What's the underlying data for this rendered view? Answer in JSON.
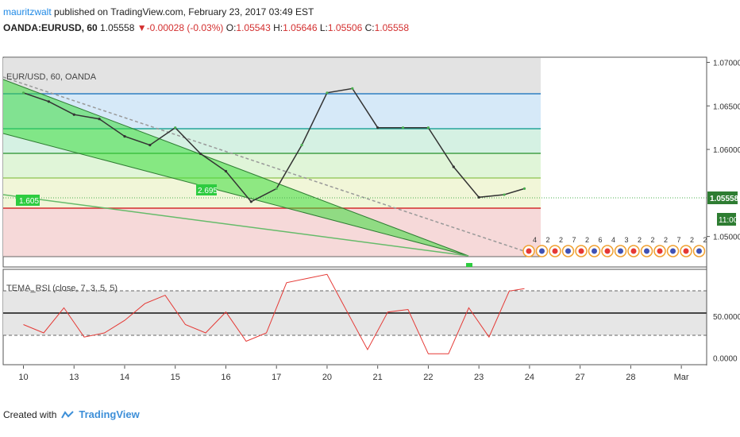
{
  "header": {
    "author": "mauritzwalt",
    "published": "published on TradingView.com, February 23, 2017 03:49 EST",
    "symbol": "OANDA:EURUSD, 60",
    "last": "1.05558",
    "change": "-0.00028 (-0.03%)",
    "o_label": "O:",
    "o": "1.05543",
    "h_label": "H:",
    "h": "1.05646",
    "l_label": "L:",
    "l": "1.05506",
    "c_label": "C:",
    "c": "1.05558"
  },
  "chart_title": "EUR/USD, 60, OANDA",
  "rsi_title": "TEMA_RSI (close, 7, 3, 5, 5)",
  "footer": {
    "created_with": "Created with",
    "brand": "TradingView"
  },
  "colors": {
    "up": "#4caf50",
    "down": "#333333",
    "rsi_line": "#e53935",
    "channel_fill": "#3ddc3d",
    "last_price_tag": "#2e7d32",
    "time_tag": "#2e7d32"
  },
  "chart_data": [
    {
      "type": "line",
      "title": "EUR/USD, 60, OANDA",
      "x_ticks": [
        "10",
        "13",
        "14",
        "15",
        "16",
        "17",
        "20",
        "21",
        "22",
        "23",
        "24",
        "27",
        "28",
        "Mar"
      ],
      "y_ticks": [
        "1.07000",
        "1.06500",
        "1.06000",
        "1.05000"
      ],
      "last_price_label": "1.05558",
      "time_label": "11:00",
      "ylim": [
        1.0465,
        1.0705
      ],
      "x": [
        0,
        0.5,
        1,
        1.5,
        2,
        2.5,
        3,
        3.5,
        4,
        4.5,
        5,
        5.5,
        6,
        6.5,
        7,
        7.5,
        8,
        8.5,
        9,
        9.5,
        9.9
      ],
      "close": [
        1.0665,
        1.0655,
        1.064,
        1.0635,
        1.0615,
        1.0605,
        1.0625,
        1.0595,
        1.0575,
        1.054,
        1.0555,
        1.0605,
        1.0665,
        1.067,
        1.0625,
        1.0625,
        1.0625,
        1.058,
        1.0545,
        1.0548,
        1.0555
      ],
      "fib_levels": [
        1.0664,
        1.0629,
        1.0604,
        1.0576,
        1.0542
      ],
      "channel_label": "1.605",
      "channel_label_2": "2.695",
      "event_flags": [
        "4",
        "2",
        "2",
        "7",
        "2",
        "6",
        "4",
        "3",
        "2",
        "2",
        "2",
        "7",
        "2",
        "2"
      ]
    },
    {
      "type": "line",
      "title": "TEMA_RSI (close, 7, 3, 5, 5)",
      "y_ticks": [
        "50.0000",
        "0.0000"
      ],
      "levels": [
        80,
        50,
        20
      ],
      "ylim": [
        -8,
        105
      ],
      "x": [
        0,
        0.4,
        0.8,
        1.2,
        1.6,
        2.0,
        2.4,
        2.8,
        3.2,
        3.6,
        4.0,
        4.4,
        4.8,
        5.2,
        5.6,
        6.0,
        6.4,
        6.8,
        7.2,
        7.6,
        8.0,
        8.4,
        8.8,
        9.2,
        9.6,
        9.9
      ],
      "values": [
        40,
        30,
        60,
        25,
        30,
        45,
        65,
        75,
        40,
        30,
        55,
        20,
        30,
        90,
        95,
        100,
        55,
        10,
        55,
        58,
        5,
        5,
        60,
        25,
        80,
        83
      ]
    }
  ]
}
